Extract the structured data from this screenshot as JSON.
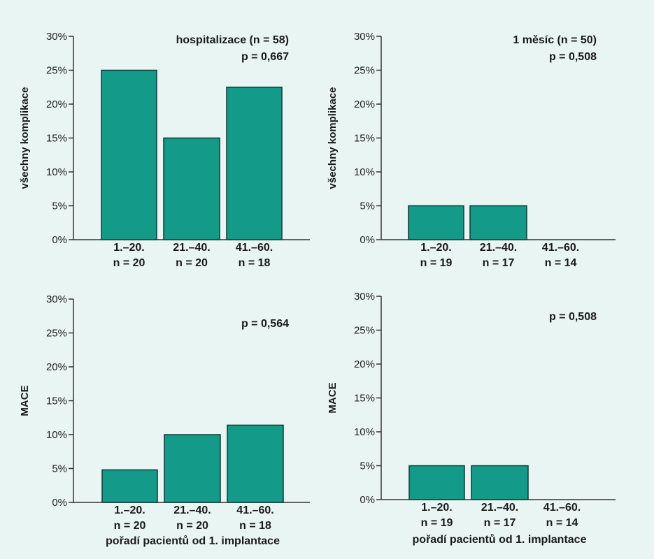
{
  "colors": {
    "background": "#e9f5f3",
    "bar": "#139a88",
    "bar_stroke": "#0d3b36",
    "axis": "#333333"
  },
  "chart_data": [
    {
      "type": "bar",
      "categories": [
        "1.–20.",
        "21.–40.",
        "41.–60."
      ],
      "counts": [
        "n = 20",
        "n = 20",
        "n = 18"
      ],
      "values": [
        25,
        15,
        22.5
      ],
      "ylabel": "všechny komplikace",
      "xlabel": "",
      "annotation_lines": [
        "hospitalizace (n = 58)",
        "p = 0,667"
      ],
      "yticks": [
        "0%",
        "5%",
        "10%",
        "15%",
        "20%",
        "25%",
        "30%"
      ],
      "ylim": [
        0,
        30
      ]
    },
    {
      "type": "bar",
      "categories": [
        "1.–20.",
        "21.–40.",
        "41.–60."
      ],
      "counts": [
        "n = 19",
        "n = 17",
        "n = 14"
      ],
      "values": [
        5,
        5,
        0
      ],
      "ylabel": "všechny komplikace",
      "xlabel": "",
      "annotation_lines": [
        "1 měsíc (n = 50)",
        "p = 0,508"
      ],
      "yticks": [
        "0%",
        "5%",
        "10%",
        "15%",
        "20%",
        "25%",
        "30%"
      ],
      "ylim": [
        0,
        30
      ]
    },
    {
      "type": "bar",
      "categories": [
        "1.–20.",
        "21.–40.",
        "41.–60."
      ],
      "counts": [
        "n = 20",
        "n = 20",
        "n = 18"
      ],
      "values": [
        4.8,
        10,
        11.4
      ],
      "ylabel": "MACE",
      "xlabel": "pořadí pacientů od 1. implantace",
      "annotation_lines": [
        "p = 0,564"
      ],
      "yticks": [
        "0%",
        "5%",
        "10%",
        "15%",
        "20%",
        "25%",
        "30%"
      ],
      "ylim": [
        0,
        30
      ]
    },
    {
      "type": "bar",
      "categories": [
        "1.–20.",
        "21.–40.",
        "41.–60."
      ],
      "counts": [
        "n = 19",
        "n = 17",
        "n = 14"
      ],
      "values": [
        5,
        5,
        0
      ],
      "ylabel": "MACE",
      "xlabel": "pořadí pacientů od 1. implantace",
      "annotation_lines": [
        "p = 0,508"
      ],
      "yticks": [
        "0%",
        "5%",
        "10%",
        "15%",
        "20%",
        "25%",
        "30%"
      ],
      "ylim": [
        0,
        30
      ]
    }
  ]
}
